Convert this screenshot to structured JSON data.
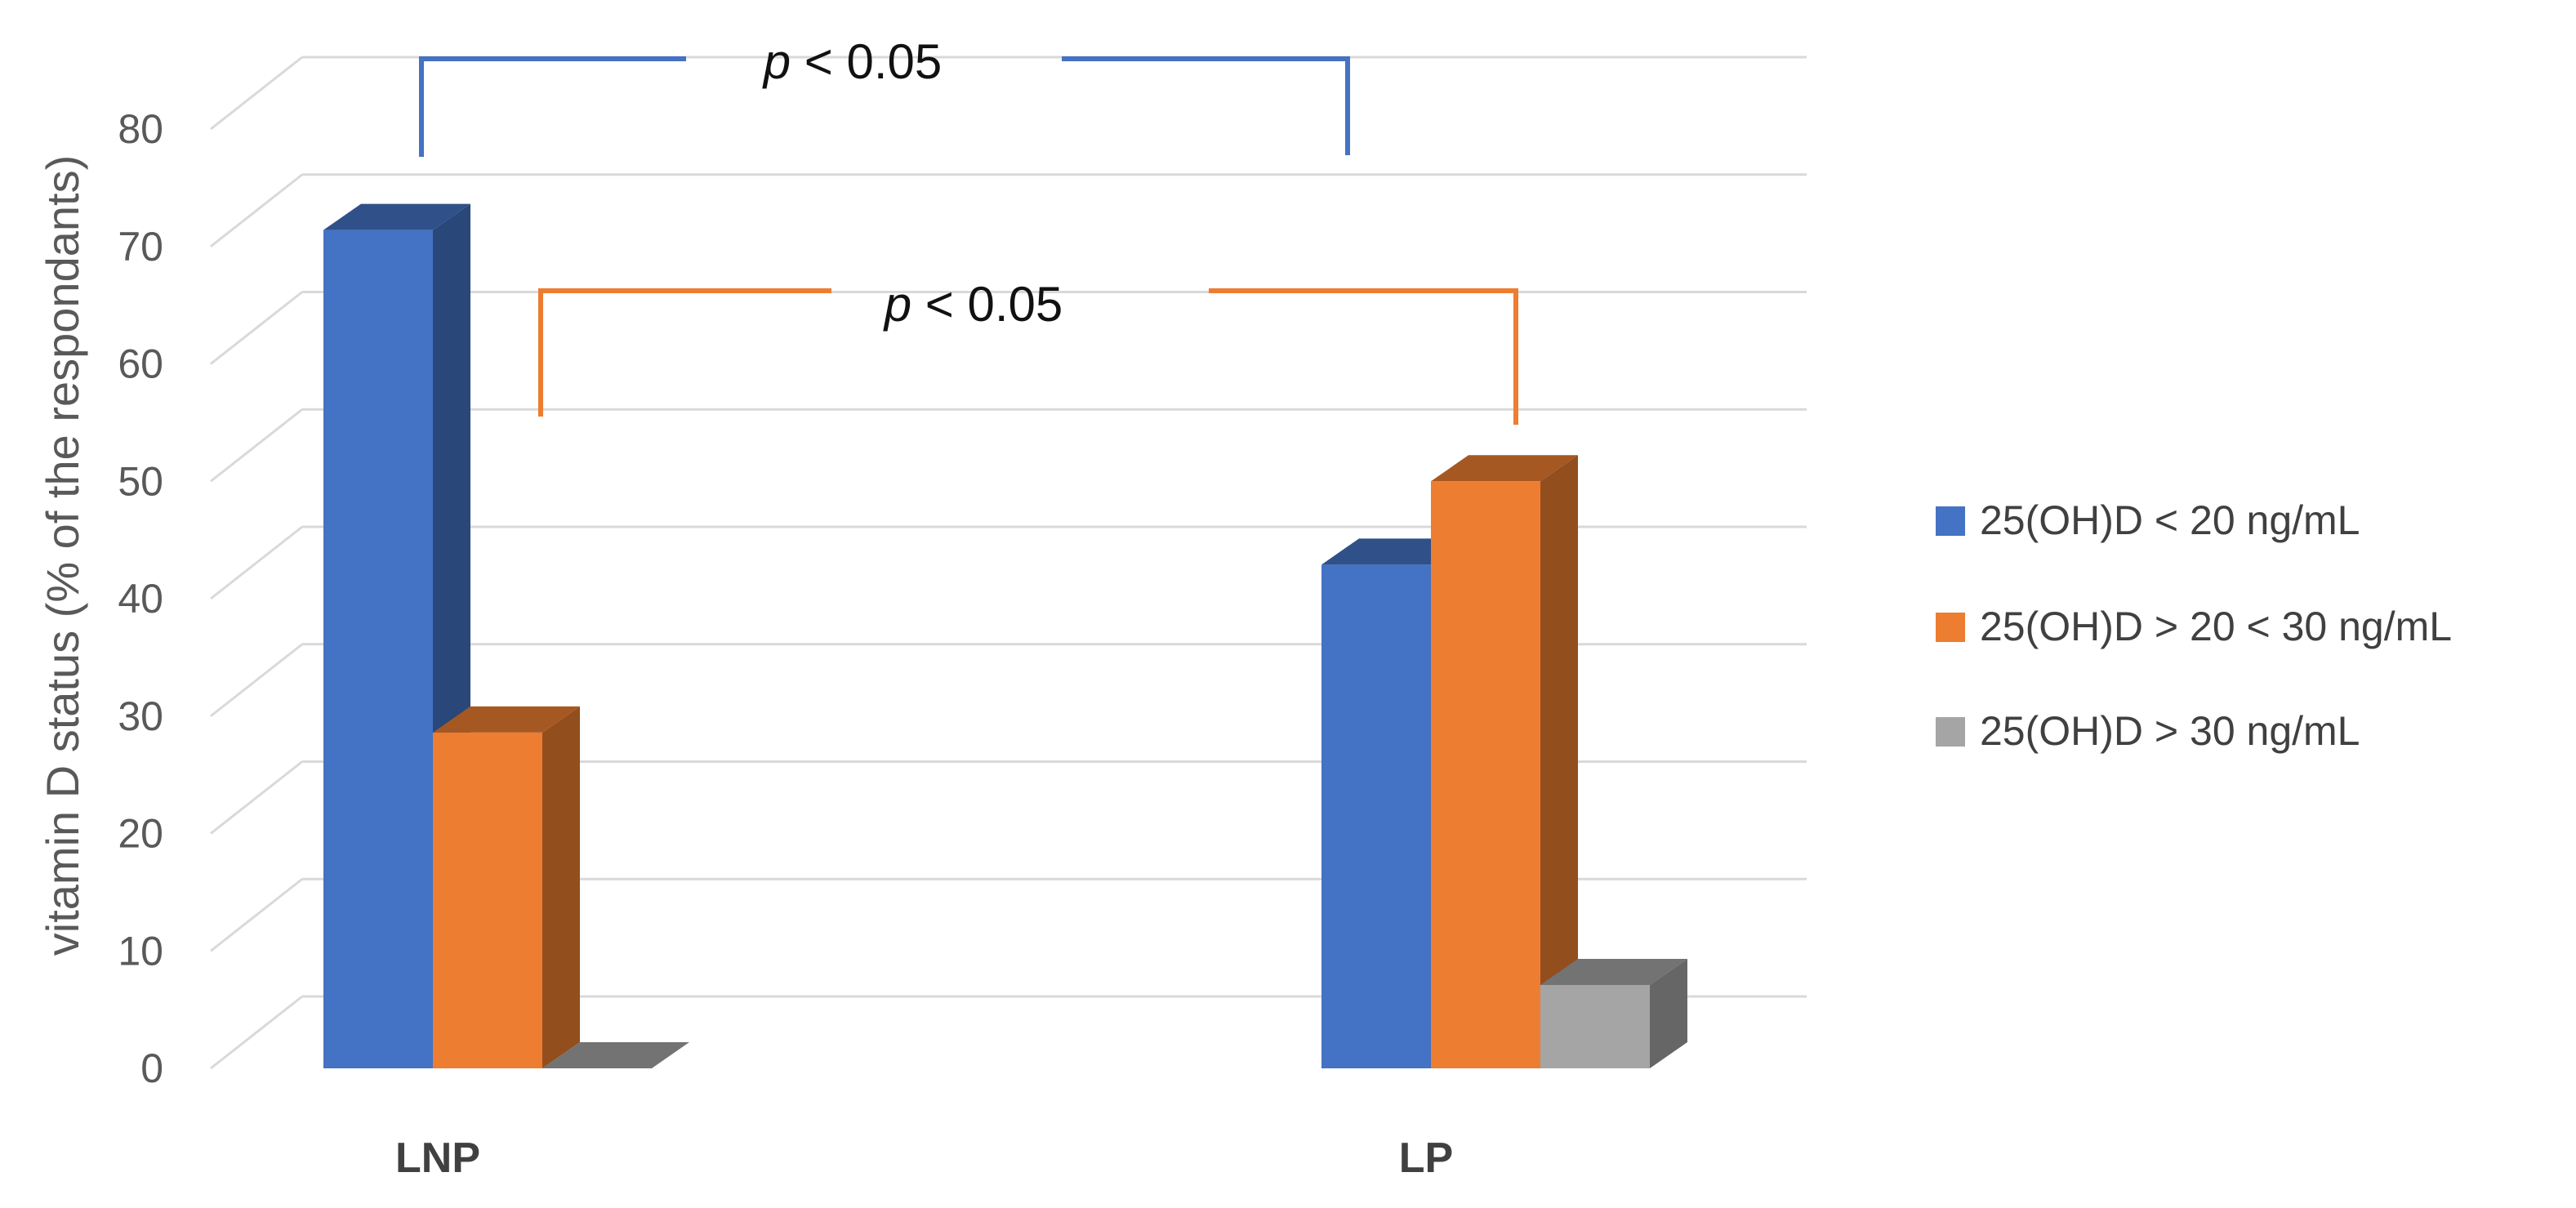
{
  "chart_data": {
    "type": "bar",
    "categories": [
      "LNP",
      "LP"
    ],
    "series": [
      {
        "name": "25(OH)D < 20 ng/mL",
        "values": [
          71.4,
          42.9
        ],
        "color": "#4472C4"
      },
      {
        "name": "25(OH)D > 20 < 30 ng/mL",
        "values": [
          28.6,
          50.0
        ],
        "color": "#ED7D31"
      },
      {
        "name": "25(OH)D > 30 ng/mL",
        "values": [
          0,
          7.1
        ],
        "color": "#A5A5A5"
      }
    ],
    "title": "",
    "xlabel": "",
    "ylabel": "vitamin D status (% of the respondants)",
    "ylim": [
      0,
      80
    ],
    "yticks": [
      0,
      10,
      20,
      30,
      40,
      50,
      60,
      70,
      80
    ],
    "grid": true,
    "legend_position": "right",
    "style": "3d-clustered-column",
    "annotations": [
      {
        "p_label": "p",
        "text": " < 0.05",
        "series": "25(OH)D < 20 ng/mL",
        "color": "#4472C4"
      },
      {
        "p_label": "p",
        "text": " < 0.05",
        "series": "25(OH)D > 20 < 30 ng/mL",
        "color": "#ED7D31"
      }
    ]
  }
}
